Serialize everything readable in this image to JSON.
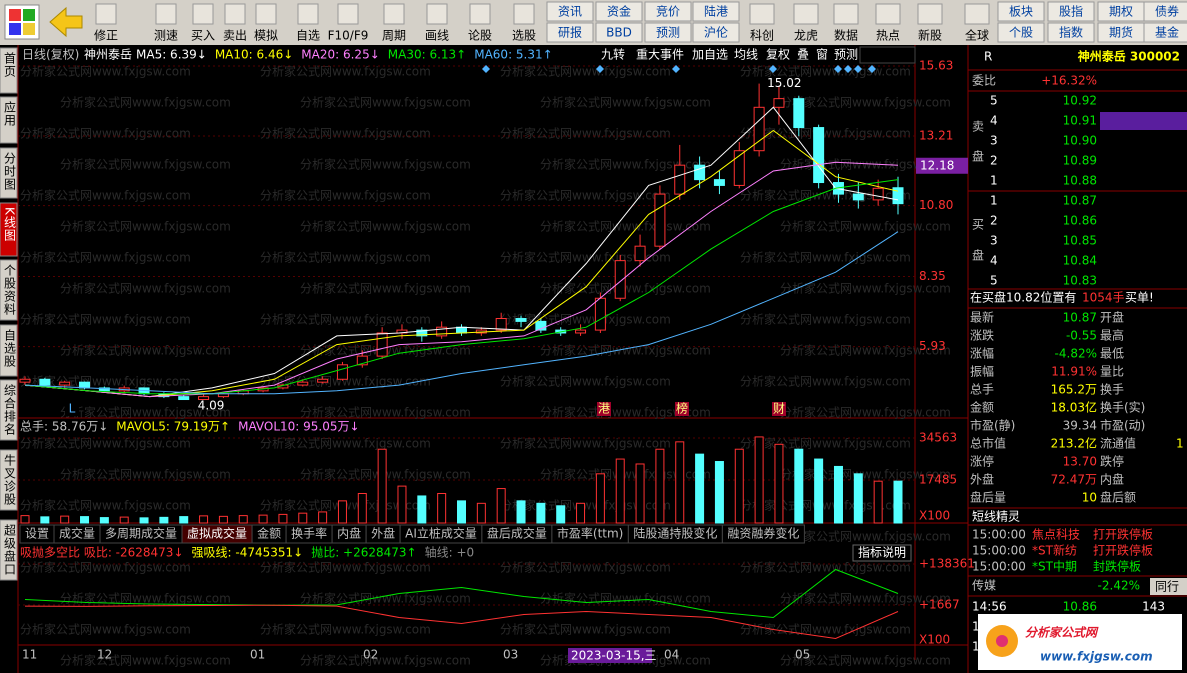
{
  "toolbar": {
    "buttons": [
      "修正",
      "测速",
      "买入",
      "卖出",
      "模拟",
      "自选",
      "F10/F9",
      "周期",
      "画线",
      "论股",
      "选股"
    ],
    "grid_left": [
      [
        "资讯",
        "资金",
        "竞价",
        "陆港"
      ],
      [
        "研报",
        "BBD",
        "预测",
        "沪伦"
      ]
    ],
    "icons": [
      "科创",
      "龙虎",
      "数据",
      "热点",
      "新股",
      "全球"
    ],
    "grid_right": [
      [
        "板块",
        "股指",
        "期权",
        "债券"
      ],
      [
        "个股",
        "指数",
        "期货",
        "基金"
      ]
    ]
  },
  "side_tabs": [
    "首页",
    "应用",
    "分时图",
    "K线图",
    "个股资料",
    "自选股",
    "综合排名",
    "牛叉诊股",
    "超级盘口"
  ],
  "chart_header": {
    "period": "日线(复权)",
    "stock": "神州泰岳",
    "buttons": [
      "九转",
      "重大事件",
      "加自选",
      "均线",
      "复权",
      "叠",
      "窗",
      "预测"
    ]
  },
  "watermark": "分析家公式网www.fxjgsw.com",
  "chart_data": [
    {
      "type": "candlestick",
      "open": [
        4.7,
        4.8,
        4.6,
        4.7,
        4.5,
        4.4,
        4.5,
        4.3,
        4.2,
        4.1,
        4.2,
        4.3,
        4.4,
        4.5,
        4.6,
        4.7,
        4.8,
        5.3,
        5.6,
        6.4,
        6.5,
        6.3,
        6.6,
        6.4,
        6.5,
        6.9,
        6.8,
        6.5,
        6.4,
        6.5,
        7.6,
        8.9,
        9.4,
        11.2,
        12.2,
        11.7,
        11.5,
        12.7,
        14.2,
        14.5,
        13.5,
        11.6,
        11.2,
        11.0,
        11.42
      ],
      "close": [
        4.8,
        4.6,
        4.7,
        4.5,
        4.4,
        4.5,
        4.3,
        4.2,
        4.1,
        4.2,
        4.3,
        4.4,
        4.5,
        4.6,
        4.7,
        4.8,
        5.3,
        5.6,
        6.4,
        6.5,
        6.3,
        6.6,
        6.4,
        6.5,
        6.9,
        6.8,
        6.5,
        6.4,
        6.5,
        7.6,
        8.9,
        9.4,
        11.2,
        12.2,
        11.7,
        11.5,
        12.7,
        14.2,
        14.5,
        13.5,
        11.6,
        11.2,
        11.0,
        11.4,
        10.87
      ],
      "high": [
        4.9,
        4.85,
        4.75,
        4.72,
        4.55,
        4.58,
        4.52,
        4.35,
        4.25,
        4.28,
        4.35,
        4.45,
        4.55,
        4.65,
        4.8,
        4.9,
        5.4,
        5.8,
        6.6,
        6.7,
        6.6,
        6.8,
        6.7,
        6.6,
        7.1,
        7.0,
        6.9,
        6.6,
        6.7,
        7.8,
        9.1,
        9.8,
        11.5,
        12.9,
        12.5,
        12.0,
        13.0,
        15.02,
        14.9,
        14.6,
        13.6,
        11.9,
        11.6,
        11.7,
        11.8
      ],
      "low": [
        4.6,
        4.55,
        4.5,
        4.45,
        4.35,
        4.35,
        4.25,
        4.15,
        4.09,
        4.09,
        4.15,
        4.25,
        4.35,
        4.45,
        4.55,
        4.65,
        4.75,
        5.2,
        5.5,
        6.2,
        6.1,
        6.2,
        6.3,
        6.3,
        6.4,
        6.6,
        6.4,
        6.3,
        6.3,
        6.4,
        7.5,
        8.7,
        9.3,
        11.0,
        11.4,
        11.2,
        11.4,
        12.5,
        13.6,
        13.2,
        11.4,
        10.9,
        10.7,
        10.8,
        10.5
      ],
      "series": [
        {
          "name": "MA5: 6.39↓",
          "color": "#ffffff",
          "values": [
            4.6,
            4.4,
            4.2,
            4.5,
            5.0,
            6.3,
            6.4,
            6.6,
            6.5,
            8.8,
            11.5,
            12.2,
            14.2,
            11.4,
            11.0
          ]
        },
        {
          "name": "MA10: 6.46↓",
          "color": "#ffff00",
          "values": [
            4.6,
            4.4,
            4.2,
            4.4,
            4.8,
            6.0,
            6.3,
            6.4,
            6.5,
            8.0,
            10.5,
            11.8,
            13.4,
            11.8,
            11.3
          ]
        },
        {
          "name": "MA20: 6.25↓",
          "color": "#ff80ff",
          "values": [
            4.6,
            4.4,
            4.2,
            4.3,
            4.6,
            5.5,
            6.0,
            6.1,
            6.3,
            7.2,
            9.0,
            10.6,
            12.0,
            12.3,
            12.2
          ]
        },
        {
          "name": "MA30: 6.13↑",
          "color": "#00e600",
          "values": [
            4.6,
            4.4,
            4.3,
            4.3,
            4.5,
            5.1,
            5.7,
            6.0,
            6.2,
            6.6,
            7.8,
            9.3,
            10.6,
            11.4,
            11.7
          ]
        },
        {
          "name": "MA60: 5.31↑",
          "color": "#52b4ff",
          "values": [
            4.6,
            4.5,
            4.4,
            4.3,
            4.3,
            4.4,
            4.6,
            5.0,
            5.3,
            5.6,
            6.0,
            6.7,
            7.6,
            8.5,
            9.9
          ]
        }
      ],
      "up_color": "#ff3232",
      "down_color": "#54ffff",
      "ylim": [
        3.565,
        16.25
      ],
      "yticks": [
        15.63,
        13.21,
        {
          "value": 10.8,
          "label": "10.80"
        },
        8.35,
        5.93
      ],
      "marker_price": {
        "value": 12.18,
        "label": "12.18"
      },
      "annotations": {
        "high": "15.02",
        "low": "4.09",
        "events": [
          "L",
          "港",
          "榜",
          "财"
        ]
      },
      "xlabels": [
        "11",
        "12",
        "01",
        "02",
        "03",
        "04",
        "05"
      ],
      "cursor_date": "2023-03-15,三",
      "grid": true
    },
    {
      "type": "bar",
      "legend": [
        "总手: 58.76万↓",
        "MAVOL5: 79.19万↑",
        "MAVOL10: 95.05万↓"
      ],
      "values": [
        3000,
        2500,
        2800,
        2600,
        2200,
        2400,
        2100,
        2300,
        2600,
        2900,
        2700,
        3000,
        3200,
        3500,
        4000,
        4500,
        9000,
        12000,
        30000,
        15000,
        11000,
        12000,
        9000,
        8000,
        14000,
        9000,
        8000,
        7000,
        8000,
        20000,
        26000,
        24000,
        30000,
        33000,
        28000,
        25000,
        30000,
        35000,
        32000,
        30000,
        26000,
        23000,
        20000,
        17000,
        17000
      ],
      "ylim": [
        0,
        38629
      ],
      "yticks": [
        34563,
        17485
      ],
      "unit": "X100",
      "tabs": [
        "设置",
        "成交量",
        "多周期成交量",
        "虚拟成交量",
        "金额",
        "换手率",
        "内盘",
        "外盘",
        "AI立桩成交量",
        "盘后成交量",
        "市盈率(ttm)",
        "陆股通持股变化",
        "融资融券变化"
      ]
    },
    {
      "type": "line",
      "legend": [
        "吸抛多空比 吸比: -2628473↓",
        "强吸线: -4745351↓",
        "抛比: +2628473↑",
        "轴线: +0"
      ],
      "help": "指标说明",
      "series": [
        {
          "name": "强吸线",
          "color": "#00e600",
          "values": [
            20000,
            10000,
            5000,
            3000,
            1000,
            2000,
            40000,
            60000,
            30000,
            10000,
            20000,
            -20000,
            -40000,
            120000,
            40000
          ]
        },
        {
          "name": "抛比",
          "color": "#ff3232",
          "values": [
            -2000,
            -3000,
            -1000,
            0,
            1000,
            -2000,
            -40000,
            -60000,
            -30000,
            -20000,
            -30000,
            -40000,
            -80000,
            -110000,
            -20000
          ]
        }
      ],
      "ylim": [
        -131700,
        151697
      ],
      "yticks": [
        {
          "value": 138361,
          "label": "+138361"
        },
        {
          "value": 1667,
          "label": "+1667"
        }
      ],
      "unit": "X100"
    }
  ],
  "quote": {
    "flag": "R",
    "title": "神州泰岳 300002",
    "weibi": [
      "委比",
      "+16.32%"
    ],
    "sell_label": [
      "卖",
      "盘"
    ],
    "buy_label": [
      "买",
      "盘"
    ],
    "sell": [
      [
        "5",
        "10.92"
      ],
      [
        "4",
        "10.91"
      ],
      [
        "3",
        "10.90"
      ],
      [
        "2",
        "10.89"
      ],
      [
        "1",
        "10.88"
      ]
    ],
    "buy": [
      [
        "1",
        "10.87"
      ],
      [
        "2",
        "10.86"
      ],
      [
        "3",
        "10.85"
      ],
      [
        "4",
        "10.84"
      ],
      [
        "5",
        "10.83"
      ]
    ],
    "notice": [
      "在买盘10.82位置有",
      "1054手",
      "买单!"
    ],
    "rows": [
      [
        "最新",
        "10.87",
        "开盘"
      ],
      [
        "涨跌",
        "-0.55",
        "最高"
      ],
      [
        "涨幅",
        "-4.82%",
        "最低"
      ],
      [
        "振幅",
        "11.91%",
        "量比"
      ],
      [
        "总手",
        "165.2万",
        "换手"
      ],
      [
        "金额",
        "18.03亿",
        "换手(实)"
      ],
      [
        "市盈(静)",
        "39.34",
        "市盈(动)"
      ],
      [
        "总市值",
        "213.2亿",
        "流通值",
        "1"
      ],
      [
        "涨停",
        "13.70",
        "跌停"
      ],
      [
        "外盘",
        "72.47万",
        "内盘"
      ],
      [
        "盘后量",
        "10",
        "盘后额"
      ]
    ],
    "elf_title": "短线精灵",
    "elf": [
      [
        "15:00:00",
        "焦点科技",
        "打开跌停板"
      ],
      [
        "15:00:00",
        "*ST新纺",
        "打开跌停板"
      ],
      [
        "15:00:00",
        "*ST中期",
        "封跌停板"
      ]
    ],
    "sector": [
      "传媒",
      "-2.42%",
      "同行"
    ],
    "tick": [
      "14:56",
      "10.86",
      "143"
    ],
    "tick_more": [
      "1",
      "1"
    ],
    "logo": [
      "分析家公式网",
      "www.fxjgsw.com"
    ]
  }
}
